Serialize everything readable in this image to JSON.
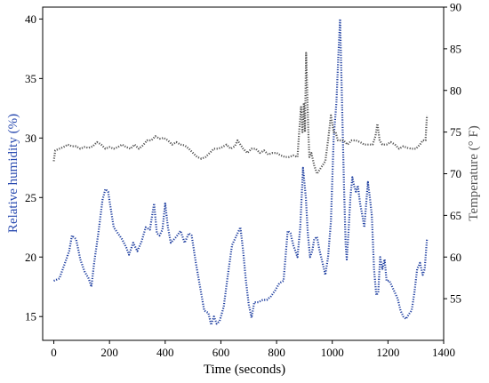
{
  "chart_data": {
    "type": "line",
    "xlabel": "Time (seconds)",
    "ylabel_left": "Relative humidity (%)",
    "ylabel_right": "Temperature (° F)",
    "xlim": [
      -40,
      1400
    ],
    "ylim_left": [
      13,
      41
    ],
    "ylim_right": [
      50,
      90
    ],
    "x_ticks": [
      0,
      200,
      400,
      600,
      800,
      1000,
      1200,
      1400
    ],
    "y_left_ticks": [
      15,
      20,
      25,
      30,
      35,
      40
    ],
    "y_right_ticks": [
      55,
      60,
      65,
      70,
      75,
      80,
      85,
      90
    ],
    "grid": false,
    "colors": {
      "humidity": "#1f3fa0",
      "temperature": "#555555",
      "left_label": "#2a4bb0",
      "right_label": "#555555"
    },
    "series": [
      {
        "axis": "left",
        "color": "#1f3fa0",
        "points": [
          [
            0,
            18
          ],
          [
            20,
            18.2
          ],
          [
            40,
            19.5
          ],
          [
            55,
            20.5
          ],
          [
            65,
            21.8
          ],
          [
            80,
            21.5
          ],
          [
            95,
            19.8
          ],
          [
            110,
            18.8
          ],
          [
            125,
            18.2
          ],
          [
            135,
            17.5
          ],
          [
            145,
            19.5
          ],
          [
            160,
            22
          ],
          [
            175,
            24.8
          ],
          [
            185,
            25.7
          ],
          [
            195,
            25.5
          ],
          [
            205,
            24
          ],
          [
            215,
            22.5
          ],
          [
            230,
            22
          ],
          [
            245,
            21.5
          ],
          [
            260,
            20.8
          ],
          [
            270,
            20.2
          ],
          [
            285,
            21.2
          ],
          [
            300,
            20.5
          ],
          [
            315,
            21.3
          ],
          [
            330,
            22.5
          ],
          [
            345,
            22.3
          ],
          [
            360,
            24.5
          ],
          [
            370,
            22
          ],
          [
            380,
            21.8
          ],
          [
            390,
            22.3
          ],
          [
            400,
            24.5
          ],
          [
            410,
            22.5
          ],
          [
            420,
            21.2
          ],
          [
            440,
            21.7
          ],
          [
            455,
            22.2
          ],
          [
            470,
            21.2
          ],
          [
            485,
            22
          ],
          [
            495,
            21.8
          ],
          [
            510,
            19.5
          ],
          [
            525,
            17.5
          ],
          [
            540,
            15.5
          ],
          [
            555,
            15.3
          ],
          [
            565,
            14.3
          ],
          [
            575,
            15
          ],
          [
            585,
            14.4
          ],
          [
            595,
            14.6
          ],
          [
            610,
            15.8
          ],
          [
            625,
            18.5
          ],
          [
            640,
            21
          ],
          [
            650,
            21.5
          ],
          [
            660,
            22
          ],
          [
            670,
            22.5
          ],
          [
            680,
            20.5
          ],
          [
            690,
            18
          ],
          [
            700,
            16
          ],
          [
            710,
            14.9
          ],
          [
            720,
            16.2
          ],
          [
            735,
            16.2
          ],
          [
            750,
            16.4
          ],
          [
            765,
            16.4
          ],
          [
            780,
            16.7
          ],
          [
            795,
            17.2
          ],
          [
            810,
            17.8
          ],
          [
            825,
            18
          ],
          [
            840,
            22.2
          ],
          [
            850,
            22
          ],
          [
            860,
            21
          ],
          [
            875,
            20
          ],
          [
            885,
            22.5
          ],
          [
            895,
            27.5
          ],
          [
            905,
            25
          ],
          [
            912,
            22
          ],
          [
            920,
            20
          ],
          [
            928,
            20.5
          ],
          [
            935,
            21.5
          ],
          [
            945,
            21.7
          ],
          [
            955,
            20.5
          ],
          [
            965,
            19.5
          ],
          [
            975,
            18.5
          ],
          [
            985,
            20
          ],
          [
            995,
            23
          ],
          [
            1005,
            30
          ],
          [
            1015,
            33
          ],
          [
            1022,
            37
          ],
          [
            1028,
            40
          ],
          [
            1035,
            33
          ],
          [
            1042,
            26
          ],
          [
            1048,
            21
          ],
          [
            1052,
            19.8
          ],
          [
            1058,
            22
          ],
          [
            1065,
            25
          ],
          [
            1072,
            26.7
          ],
          [
            1078,
            26
          ],
          [
            1085,
            25.5
          ],
          [
            1092,
            26
          ],
          [
            1100,
            24.5
          ],
          [
            1108,
            23.5
          ],
          [
            1115,
            22.5
          ],
          [
            1122,
            24.5
          ],
          [
            1128,
            26.3
          ],
          [
            1135,
            25
          ],
          [
            1142,
            23.5
          ],
          [
            1150,
            19
          ],
          [
            1158,
            16.8
          ],
          [
            1165,
            17
          ],
          [
            1172,
            20
          ],
          [
            1180,
            19
          ],
          [
            1188,
            19.8
          ],
          [
            1195,
            18
          ],
          [
            1205,
            18
          ],
          [
            1215,
            17.5
          ],
          [
            1225,
            17
          ],
          [
            1235,
            16.5
          ],
          [
            1245,
            15.5
          ],
          [
            1255,
            15
          ],
          [
            1265,
            14.8
          ],
          [
            1275,
            15.2
          ],
          [
            1285,
            15.5
          ],
          [
            1295,
            17
          ],
          [
            1305,
            19
          ],
          [
            1315,
            19.5
          ],
          [
            1325,
            18.5
          ],
          [
            1332,
            19
          ],
          [
            1340,
            21.5
          ]
        ]
      },
      {
        "axis": "right",
        "color": "#555555",
        "points": [
          [
            0,
            71.5
          ],
          [
            5,
            72.8
          ],
          [
            20,
            73
          ],
          [
            35,
            73.2
          ],
          [
            50,
            73.5
          ],
          [
            65,
            73.3
          ],
          [
            80,
            73.3
          ],
          [
            95,
            73
          ],
          [
            110,
            73.2
          ],
          [
            125,
            73.1
          ],
          [
            140,
            73.3
          ],
          [
            155,
            73.8
          ],
          [
            170,
            73.5
          ],
          [
            185,
            73
          ],
          [
            200,
            73.2
          ],
          [
            215,
            73
          ],
          [
            230,
            73.2
          ],
          [
            245,
            73.5
          ],
          [
            260,
            73.2
          ],
          [
            275,
            73
          ],
          [
            290,
            73.5
          ],
          [
            305,
            73
          ],
          [
            320,
            73.4
          ],
          [
            335,
            74
          ],
          [
            350,
            74
          ],
          [
            365,
            74.5
          ],
          [
            380,
            74.2
          ],
          [
            395,
            74.3
          ],
          [
            410,
            74
          ],
          [
            425,
            73.5
          ],
          [
            440,
            73.8
          ],
          [
            455,
            73.5
          ],
          [
            470,
            73.4
          ],
          [
            485,
            73
          ],
          [
            500,
            72.5
          ],
          [
            515,
            72
          ],
          [
            530,
            71.8
          ],
          [
            545,
            72
          ],
          [
            560,
            72.5
          ],
          [
            575,
            73
          ],
          [
            590,
            73
          ],
          [
            605,
            73.2
          ],
          [
            620,
            73.5
          ],
          [
            635,
            73
          ],
          [
            650,
            73.3
          ],
          [
            660,
            74
          ],
          [
            670,
            73.5
          ],
          [
            680,
            73
          ],
          [
            695,
            72.5
          ],
          [
            710,
            73
          ],
          [
            725,
            73
          ],
          [
            740,
            72.5
          ],
          [
            755,
            72.8
          ],
          [
            770,
            72.3
          ],
          [
            785,
            72.5
          ],
          [
            800,
            72.5
          ],
          [
            815,
            72.2
          ],
          [
            830,
            72
          ],
          [
            845,
            72
          ],
          [
            860,
            72.2
          ],
          [
            875,
            72
          ],
          [
            882,
            75.5
          ],
          [
            888,
            78
          ],
          [
            893,
            75
          ],
          [
            898,
            78.5
          ],
          [
            902,
            75
          ],
          [
            906,
            84.5
          ],
          [
            910,
            80
          ],
          [
            914,
            75
          ],
          [
            918,
            72
          ],
          [
            925,
            72.5
          ],
          [
            935,
            71
          ],
          [
            945,
            70
          ],
          [
            955,
            70.5
          ],
          [
            965,
            71
          ],
          [
            975,
            71.5
          ],
          [
            985,
            74
          ],
          [
            995,
            77
          ],
          [
            1005,
            75
          ],
          [
            1012,
            75
          ],
          [
            1020,
            74
          ],
          [
            1030,
            74
          ],
          [
            1040,
            74
          ],
          [
            1055,
            73.5
          ],
          [
            1070,
            74
          ],
          [
            1085,
            74
          ],
          [
            1100,
            73.8
          ],
          [
            1115,
            73.5
          ],
          [
            1130,
            73.5
          ],
          [
            1145,
            73.5
          ],
          [
            1155,
            74.5
          ],
          [
            1162,
            76
          ],
          [
            1170,
            74
          ],
          [
            1180,
            73.5
          ],
          [
            1195,
            73.5
          ],
          [
            1210,
            73.8
          ],
          [
            1225,
            73.5
          ],
          [
            1240,
            73
          ],
          [
            1255,
            73.3
          ],
          [
            1270,
            73.1
          ],
          [
            1285,
            73
          ],
          [
            1300,
            73
          ],
          [
            1315,
            73.5
          ],
          [
            1325,
            74
          ],
          [
            1335,
            74
          ],
          [
            1340,
            77
          ]
        ]
      }
    ]
  }
}
